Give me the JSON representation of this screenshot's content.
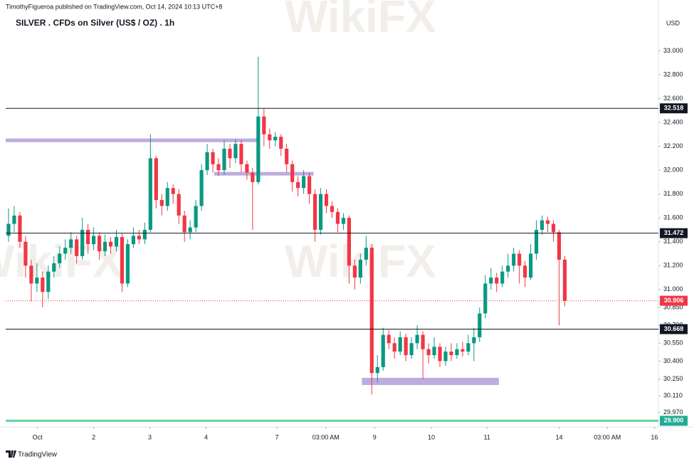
{
  "header": {
    "byline": "TimothyFigueroa published on TradingView.com, Oct 14, 2024 10:13 UTC+8",
    "logo": "TradingView",
    "watermark": "WikiFX"
  },
  "chart_data": {
    "type": "candlestick",
    "title": "SILVER . CFDs on Silver (US$ / OZ) . 1h",
    "y_axis_label": "USD",
    "up_color": "#089981",
    "down_color": "#f23645",
    "open": [
      31.45,
      31.55,
      31.62,
      31.4,
      31.2,
      31.05,
      31.1,
      30.98,
      31.15,
      31.22,
      31.3,
      31.35,
      31.42,
      31.28,
      31.5,
      31.38,
      31.45,
      31.32,
      31.4,
      31.36,
      31.44,
      31.05,
      31.38,
      31.45,
      31.42,
      31.5,
      32.1,
      31.75,
      31.7,
      31.85,
      31.8,
      31.62,
      31.48,
      31.52,
      31.7,
      32.0,
      32.15,
      32.05,
      32.0,
      32.18,
      32.1,
      32.22,
      32.05,
      31.98,
      31.9,
      32.45,
      32.3,
      32.25,
      32.28,
      32.18,
      32.05,
      31.9,
      31.85,
      31.95,
      31.8,
      31.5,
      31.8,
      31.7,
      31.65,
      31.55,
      31.6,
      31.2,
      31.1,
      31.25,
      31.35,
      30.3,
      30.35,
      30.62,
      30.55,
      30.48,
      30.6,
      30.45,
      30.55,
      30.62,
      30.5,
      30.45,
      30.52,
      30.4,
      30.48,
      30.45,
      30.5,
      30.48,
      30.55,
      30.6,
      30.8,
      31.05,
      31.1,
      31.05,
      31.15,
      31.2,
      31.3,
      31.2,
      31.1,
      31.3,
      31.5,
      31.58,
      31.55,
      31.48,
      31.25
    ],
    "high": [
      31.68,
      31.7,
      31.65,
      31.45,
      31.25,
      31.22,
      31.15,
      31.2,
      31.28,
      31.36,
      31.42,
      31.48,
      31.45,
      31.6,
      31.55,
      31.52,
      31.48,
      31.46,
      31.44,
      31.5,
      31.47,
      31.42,
      31.52,
      31.5,
      31.56,
      32.3,
      32.12,
      31.8,
      31.9,
      31.88,
      31.84,
      31.66,
      31.58,
      31.75,
      32.05,
      32.22,
      32.18,
      32.1,
      32.25,
      32.22,
      32.26,
      32.25,
      32.08,
      32.02,
      32.95,
      32.52,
      32.35,
      32.32,
      32.3,
      32.22,
      32.08,
      31.95,
      32.0,
      31.98,
      31.84,
      31.85,
      31.84,
      31.74,
      31.68,
      31.64,
      31.62,
      31.25,
      31.3,
      31.45,
      31.38,
      30.45,
      30.68,
      30.66,
      30.6,
      30.65,
      30.63,
      30.6,
      30.7,
      30.65,
      30.55,
      30.6,
      30.55,
      30.52,
      30.55,
      30.55,
      30.56,
      30.62,
      30.68,
      30.85,
      31.12,
      31.18,
      31.14,
      31.2,
      31.3,
      31.35,
      31.33,
      31.24,
      31.38,
      31.58,
      31.62,
      31.61,
      31.58,
      31.5,
      31.28
    ],
    "low": [
      31.4,
      31.48,
      31.35,
      31.1,
      30.9,
      30.98,
      30.85,
      30.92,
      31.1,
      31.18,
      31.25,
      31.3,
      31.22,
      31.25,
      31.3,
      31.33,
      31.25,
      31.28,
      31.3,
      31.32,
      30.98,
      31.02,
      31.35,
      31.38,
      31.38,
      31.48,
      31.68,
      31.62,
      31.66,
      31.72,
      31.55,
      31.4,
      31.42,
      31.48,
      31.66,
      31.96,
      31.98,
      31.95,
      31.96,
      32.02,
      32.06,
      31.98,
      31.92,
      31.5,
      31.88,
      32.2,
      32.18,
      32.2,
      32.12,
      31.98,
      31.82,
      31.78,
      31.8,
      31.72,
      31.4,
      31.46,
      31.64,
      31.6,
      31.48,
      31.5,
      31.05,
      31.0,
      31.05,
      31.2,
      30.12,
      30.22,
      30.32,
      30.5,
      30.42,
      30.45,
      30.4,
      30.42,
      30.5,
      30.25,
      30.38,
      30.42,
      30.35,
      30.36,
      30.4,
      30.42,
      30.44,
      30.45,
      30.4,
      30.56,
      30.76,
      31.0,
      30.98,
      31.02,
      31.1,
      31.15,
      31.05,
      31.02,
      31.08,
      31.25,
      31.46,
      31.48,
      31.4,
      30.7,
      30.86
    ],
    "close": [
      31.55,
      31.62,
      31.4,
      31.2,
      31.05,
      31.1,
      30.98,
      31.15,
      31.22,
      31.3,
      31.35,
      31.42,
      31.28,
      31.5,
      31.38,
      31.45,
      31.32,
      31.4,
      31.36,
      31.44,
      31.05,
      31.38,
      31.45,
      31.42,
      31.5,
      32.1,
      31.75,
      31.7,
      31.85,
      31.8,
      31.62,
      31.48,
      31.52,
      31.7,
      32.0,
      32.15,
      32.05,
      32.0,
      32.18,
      32.1,
      32.22,
      32.05,
      31.98,
      31.9,
      32.45,
      32.3,
      32.25,
      32.28,
      32.18,
      32.05,
      31.9,
      31.85,
      31.95,
      31.8,
      31.5,
      31.8,
      31.7,
      31.65,
      31.55,
      31.6,
      31.2,
      31.1,
      31.25,
      31.35,
      30.3,
      30.35,
      30.62,
      30.55,
      30.48,
      30.6,
      30.45,
      30.55,
      30.62,
      30.5,
      30.45,
      30.52,
      30.4,
      30.48,
      30.45,
      30.5,
      30.48,
      30.55,
      30.6,
      30.8,
      31.05,
      31.1,
      31.05,
      31.15,
      31.2,
      31.3,
      31.2,
      31.1,
      31.3,
      31.5,
      31.58,
      31.55,
      31.48,
      31.25,
      30.906
    ],
    "xlim": [
      0,
      115
    ],
    "xticks": [
      {
        "value": 5.6,
        "label": "Oct"
      },
      {
        "value": 15.5,
        "label": "2"
      },
      {
        "value": 25.4,
        "label": "3"
      },
      {
        "value": 35.3,
        "label": "4"
      },
      {
        "value": 47.8,
        "label": "7"
      },
      {
        "value": 56.4,
        "label": "03:00 AM"
      },
      {
        "value": 65,
        "label": "9"
      },
      {
        "value": 75,
        "label": "10"
      },
      {
        "value": 84.8,
        "label": "11"
      },
      {
        "value": 97.5,
        "label": "14"
      },
      {
        "value": 106,
        "label": "03:00 AM"
      },
      {
        "value": 114.3,
        "label": "16"
      }
    ],
    "ylim": [
      29.86,
      33.39
    ],
    "yticks": [
      {
        "value": 33.0,
        "label": "33.000"
      },
      {
        "value": 32.8,
        "label": "32.800"
      },
      {
        "value": 32.6,
        "label": "32.600"
      },
      {
        "value": 32.4,
        "label": "32.400"
      },
      {
        "value": 32.2,
        "label": "32.200"
      },
      {
        "value": 32.0,
        "label": "32.000"
      },
      {
        "value": 31.8,
        "label": "31.800"
      },
      {
        "value": 31.6,
        "label": "31.600"
      },
      {
        "value": 31.4,
        "label": "31.400"
      },
      {
        "value": 31.2,
        "label": "31.200"
      },
      {
        "value": 31.0,
        "label": "31.000"
      },
      {
        "value": 30.85,
        "label": "30.850"
      },
      {
        "value": 30.7,
        "label": "30.700"
      },
      {
        "value": 30.55,
        "label": "30.550"
      },
      {
        "value": 30.4,
        "label": "30.400"
      },
      {
        "value": 30.25,
        "label": "30.250"
      },
      {
        "value": 30.11,
        "label": "30.110"
      },
      {
        "value": 29.97,
        "label": "29.970"
      }
    ],
    "levels": [
      {
        "value": 32.518,
        "color": "#131722",
        "box": "#131722"
      },
      {
        "value": 31.472,
        "color": "#131722",
        "box": "#131722"
      },
      {
        "value": 30.668,
        "color": "#131722",
        "box": "#131722"
      },
      {
        "value": 30.906,
        "color": "#f23645",
        "box": "#f23645",
        "dotted": true
      },
      {
        "value": 29.9,
        "label": "29.900",
        "color": "#5bd69a",
        "box": "#22ab94"
      }
    ],
    "zones": [
      {
        "x": [
          0,
          44.6
        ],
        "y": [
          32.235,
          32.265
        ]
      },
      {
        "x": [
          36.75,
          54.25
        ],
        "y": [
          31.955,
          31.985
        ]
      },
      {
        "x": [
          62.75,
          86.9
        ],
        "y": [
          30.2,
          30.26
        ]
      }
    ],
    "zone_color": "#b39ddb"
  }
}
